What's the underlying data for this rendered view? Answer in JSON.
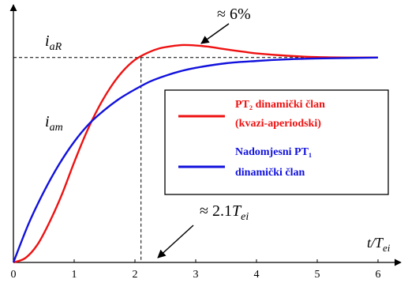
{
  "chart_data": {
    "type": "line",
    "xlabel": "t/T_ei",
    "x_ticks": [
      "0",
      "1",
      "2",
      "3",
      "4",
      "5",
      "6"
    ],
    "xlim": [
      0,
      6.5
    ],
    "ylim": [
      0,
      1.03
    ],
    "grid": false,
    "legend_position": "right-center",
    "annotations": {
      "overshoot": "≈ 6%",
      "crossing_time": "≈ 2.1T_ei",
      "crossing_time_x": 2.1,
      "level_label": "i_aR",
      "level_y": 0.9,
      "curve_label": "i_am"
    },
    "series": [
      {
        "name": "PT₂ dinamički član (kvazi-aperiodski)",
        "color": "#ee1111",
        "x": [
          0,
          0.2,
          0.4,
          0.6,
          0.8,
          1.0,
          1.2,
          1.4,
          1.6,
          1.8,
          2.0,
          2.2,
          2.4,
          2.6,
          2.8,
          3.0,
          3.2,
          3.4,
          3.6,
          3.8,
          4.0,
          4.5,
          5.0,
          5.5,
          6.0
        ],
        "y": [
          0,
          0.02,
          0.08,
          0.18,
          0.3,
          0.44,
          0.57,
          0.68,
          0.77,
          0.84,
          0.89,
          0.92,
          0.94,
          0.95,
          0.955,
          0.953,
          0.948,
          0.94,
          0.932,
          0.925,
          0.918,
          0.908,
          0.902,
          0.9,
          0.9
        ]
      },
      {
        "name": "Nadomjesni PT₁ dinamički član",
        "color": "#1111dd",
        "x": [
          0,
          0.25,
          0.5,
          0.75,
          1.0,
          1.25,
          1.5,
          1.75,
          2.0,
          2.25,
          2.5,
          2.75,
          3.0,
          3.5,
          4.0,
          4.5,
          5.0,
          5.5,
          6.0
        ],
        "y": [
          0,
          0.17,
          0.31,
          0.43,
          0.53,
          0.61,
          0.67,
          0.72,
          0.76,
          0.795,
          0.82,
          0.84,
          0.855,
          0.875,
          0.885,
          0.892,
          0.896,
          0.898,
          0.9
        ]
      }
    ]
  }
}
